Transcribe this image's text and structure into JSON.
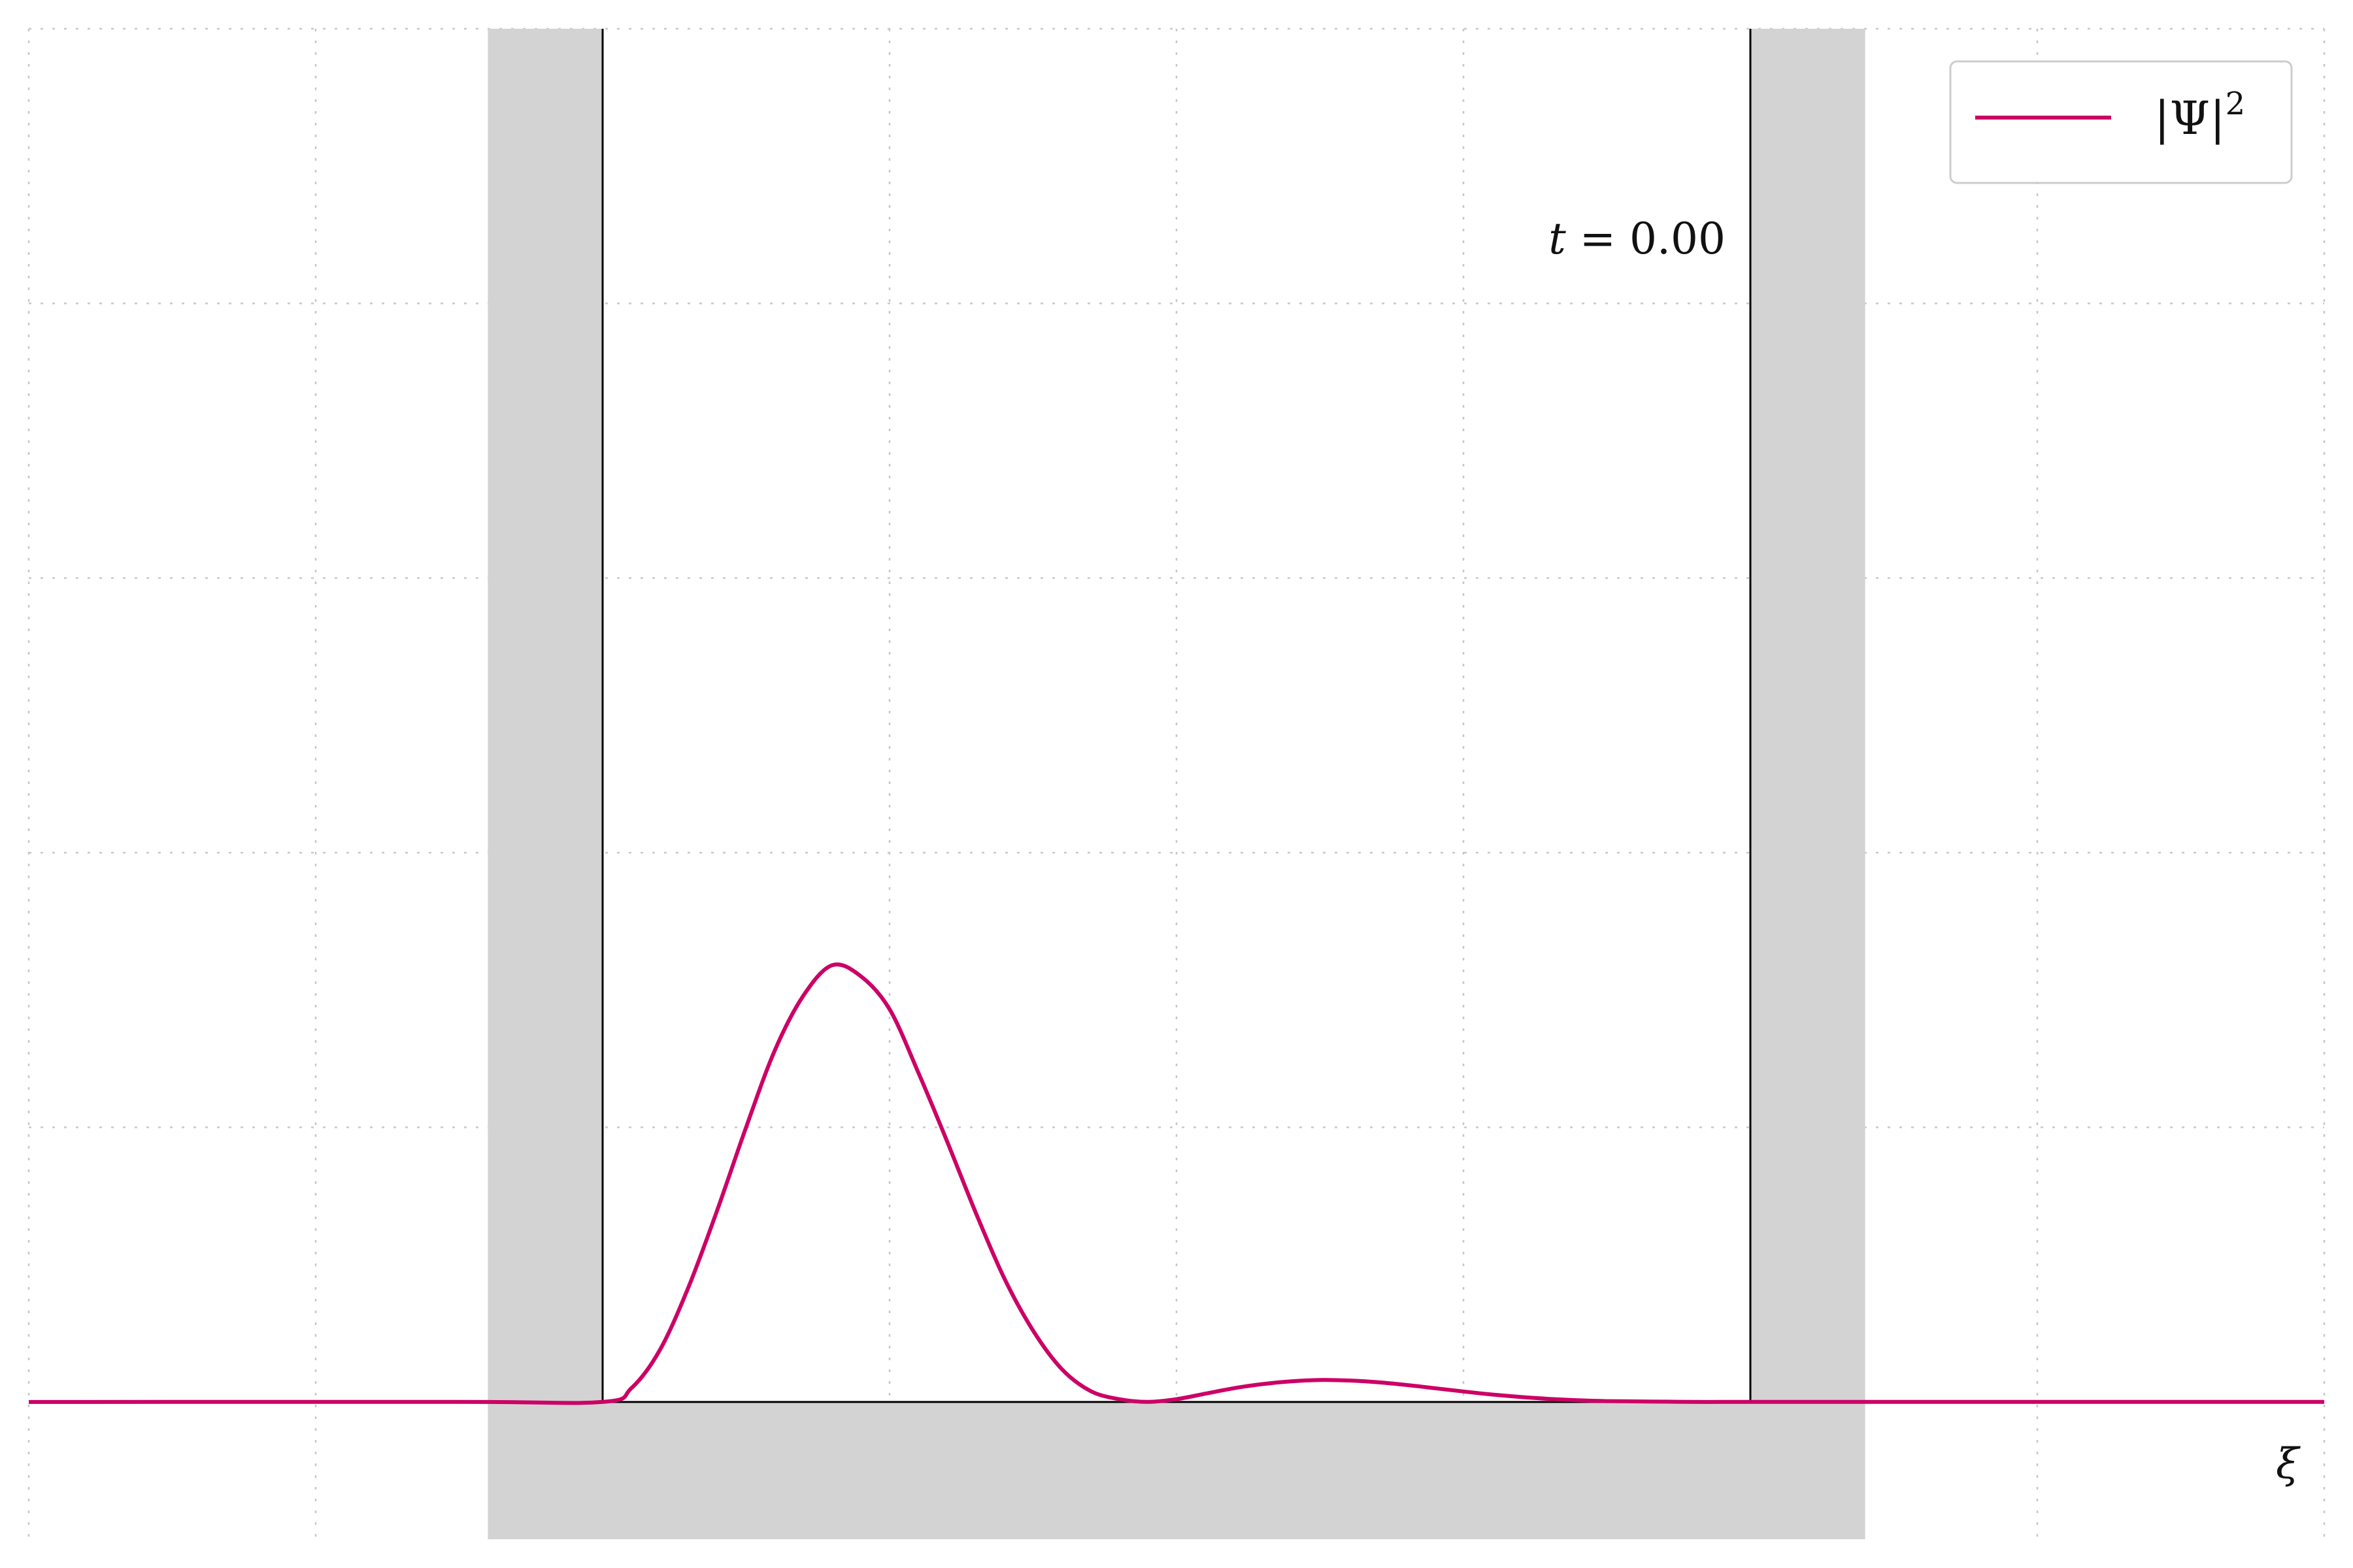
{
  "chart_data": {
    "type": "line",
    "annotation": {
      "var": "t",
      "eq": " = ",
      "value": "0.00"
    },
    "xlabel": "ξ",
    "ylabel": "",
    "xlim": [
      -2,
      6
    ],
    "ylim": [
      -0.5,
      5.0
    ],
    "grid": true,
    "legend": {
      "placement": "top-right",
      "entries": [
        {
          "label": "|Ψ|²",
          "base": "|Ψ|",
          "sup": "2",
          "color": "#cc0066"
        }
      ]
    },
    "well": {
      "left": 0,
      "right": 4,
      "barrier_width": 0.4,
      "floor_depth": 0.5,
      "color": "#d3d3d3"
    },
    "series": [
      {
        "label": "|Ψ|²",
        "color": "#cc0066",
        "x": [
          -2,
          -0.5,
          0,
          0.1,
          0.2,
          0.3,
          0.4,
          0.5,
          0.6,
          0.7,
          0.8,
          0.9,
          1.0,
          1.1,
          1.2,
          1.3,
          1.4,
          1.5,
          1.6,
          1.7,
          1.8,
          1.9,
          2.0,
          2.1,
          2.2,
          2.3,
          2.4,
          2.5,
          2.6,
          2.7,
          2.8,
          2.9,
          3.0,
          3.1,
          3.2,
          3.3,
          3.4,
          3.5,
          3.6,
          3.7,
          3.8,
          3.9,
          4.0,
          4.5,
          6
        ],
        "y": [
          0,
          0,
          0,
          0.05,
          0.19,
          0.42,
          0.7,
          1.0,
          1.28,
          1.48,
          1.59,
          1.55,
          1.43,
          1.2,
          0.95,
          0.69,
          0.45,
          0.26,
          0.12,
          0.04,
          0.01,
          0.0,
          0.01,
          0.03,
          0.05,
          0.065,
          0.075,
          0.08,
          0.078,
          0.072,
          0.062,
          0.05,
          0.038,
          0.027,
          0.018,
          0.011,
          0.006,
          0.003,
          0.002,
          0.001,
          0.0,
          0.0,
          0,
          0,
          0
        ]
      }
    ]
  }
}
